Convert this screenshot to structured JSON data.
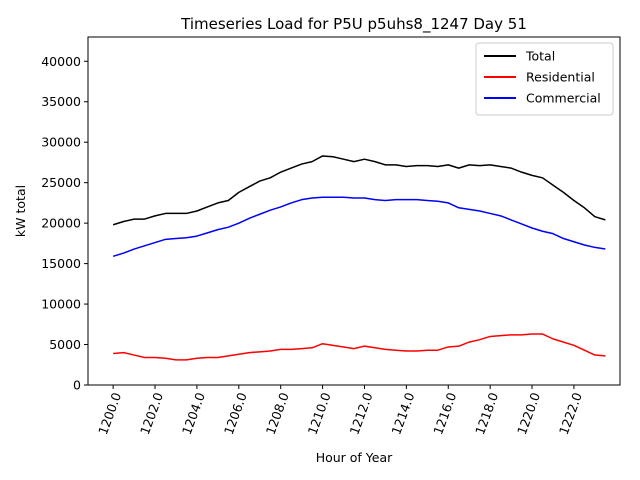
{
  "chart_data": {
    "type": "line",
    "title": "Timeseries Load for P5U p5uhs8_1247  Day 51",
    "xlabel": "Hour of Year",
    "ylabel": "kW total",
    "xlim": [
      1198.8,
      1224.2
    ],
    "ylim": [
      0,
      43000
    ],
    "xticks": [
      1200,
      1202,
      1204,
      1206,
      1208,
      1210,
      1212,
      1214,
      1216,
      1218,
      1220,
      1222
    ],
    "xtick_labels": [
      "1200.0",
      "1202.0",
      "1204.0",
      "1206.0",
      "1208.0",
      "1210.0",
      "1212.0",
      "1214.0",
      "1216.0",
      "1218.0",
      "1220.0",
      "1222.0"
    ],
    "yticks": [
      0,
      5000,
      10000,
      15000,
      20000,
      25000,
      30000,
      35000,
      40000
    ],
    "ytick_labels": [
      "0",
      "5000",
      "10000",
      "15000",
      "20000",
      "25000",
      "30000",
      "35000",
      "40000"
    ],
    "grid": false,
    "legend_position": "top-right",
    "x": [
      1200.0,
      1200.5,
      1201.0,
      1201.5,
      1202.0,
      1202.5,
      1203.0,
      1203.5,
      1204.0,
      1204.5,
      1205.0,
      1205.5,
      1206.0,
      1206.5,
      1207.0,
      1207.5,
      1208.0,
      1208.5,
      1209.0,
      1209.5,
      1210.0,
      1210.5,
      1211.0,
      1211.5,
      1212.0,
      1212.5,
      1213.0,
      1213.5,
      1214.0,
      1214.5,
      1215.0,
      1215.5,
      1216.0,
      1216.5,
      1217.0,
      1217.5,
      1218.0,
      1218.5,
      1219.0,
      1219.5,
      1220.0,
      1220.5,
      1221.0,
      1221.5,
      1222.0,
      1222.5,
      1223.0,
      1223.5
    ],
    "series": [
      {
        "name": "Total",
        "color": "#000000",
        "values": [
          19800,
          20200,
          20500,
          20500,
          20900,
          21200,
          21200,
          21200,
          21500,
          22000,
          22500,
          22800,
          23800,
          24500,
          25200,
          25600,
          26300,
          26800,
          27300,
          27600,
          28300,
          28200,
          27900,
          27600,
          27900,
          27600,
          27200,
          27200,
          27000,
          27100,
          27100,
          27000,
          27200,
          26800,
          27200,
          27100,
          27200,
          27000,
          26800,
          26300,
          25900,
          25600,
          24700,
          23800,
          22800,
          21900,
          20800,
          20400
        ]
      },
      {
        "name": "Residential",
        "color": "#ff0000",
        "values": [
          3900,
          4000,
          3700,
          3400,
          3400,
          3300,
          3100,
          3100,
          3300,
          3400,
          3400,
          3600,
          3800,
          4000,
          4100,
          4200,
          4400,
          4400,
          4500,
          4600,
          5100,
          4900,
          4700,
          4500,
          4800,
          4600,
          4400,
          4300,
          4200,
          4200,
          4300,
          4300,
          4700,
          4800,
          5300,
          5600,
          6000,
          6100,
          6200,
          6200,
          6300,
          6300,
          5700,
          5300,
          4900,
          4300,
          3700,
          3600
        ]
      },
      {
        "name": "Commercial",
        "color": "#0000ff",
        "values": [
          15900,
          16300,
          16800,
          17200,
          17600,
          18000,
          18100,
          18200,
          18400,
          18800,
          19200,
          19500,
          20000,
          20600,
          21100,
          21600,
          22000,
          22500,
          22900,
          23100,
          23200,
          23200,
          23200,
          23100,
          23100,
          22900,
          22800,
          22900,
          22900,
          22900,
          22800,
          22700,
          22500,
          21900,
          21700,
          21500,
          21200,
          20900,
          20400,
          19900,
          19400,
          19000,
          18700,
          18100,
          17700,
          17300,
          17000,
          16800
        ]
      }
    ]
  }
}
